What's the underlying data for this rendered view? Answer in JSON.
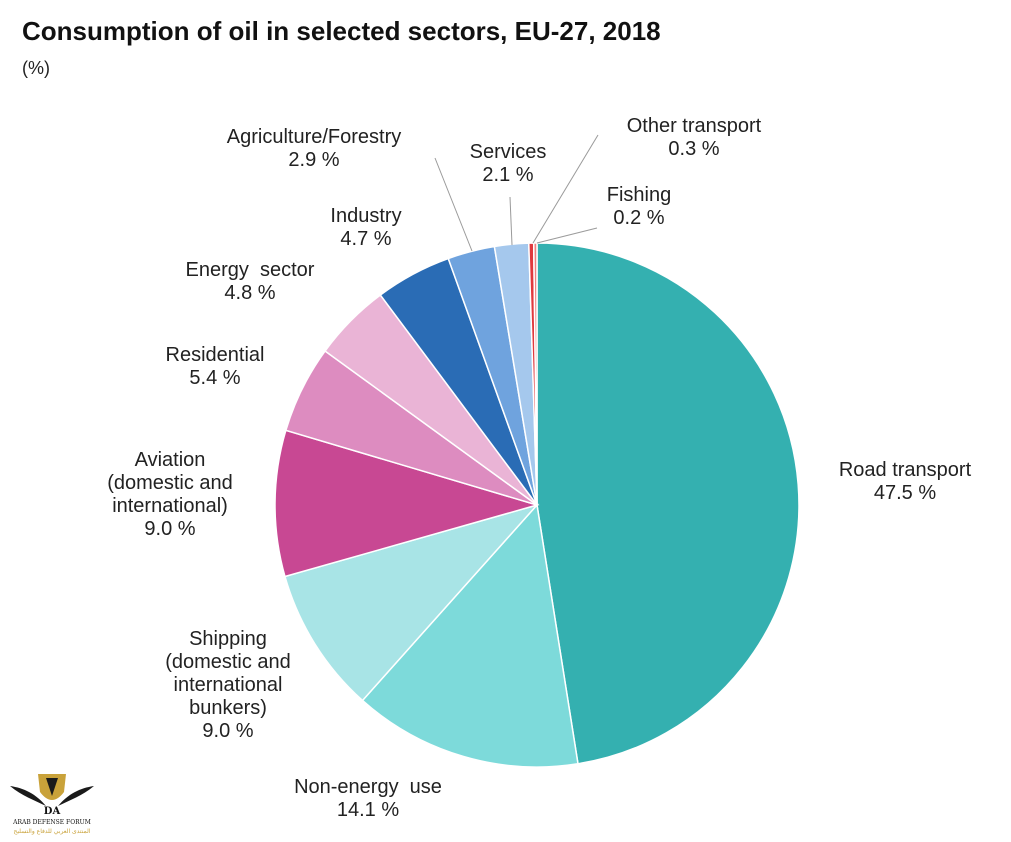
{
  "chart_data": {
    "type": "pie",
    "title": "Consumption of oil in selected sectors, EU-27, 2018",
    "subtitle": "(%)",
    "unit": "%",
    "slices": [
      {
        "key": "road-transport",
        "label": [
          "Road transport"
        ],
        "value": 47.5,
        "value_text": "47.5 %",
        "color": "#34B0B0"
      },
      {
        "key": "non-energy-use",
        "label": [
          "Non-energy  use"
        ],
        "value": 14.1,
        "value_text": "14.1 %",
        "color": "#7DDADA"
      },
      {
        "key": "shipping",
        "label": [
          "Shipping",
          "(domestic and",
          "international",
          "bunkers)"
        ],
        "value": 9.0,
        "value_text": "9.0 %",
        "color": "#A8E4E6"
      },
      {
        "key": "aviation",
        "label": [
          "Aviation",
          "(domestic and",
          "international)"
        ],
        "value": 9.0,
        "value_text": "9.0 %",
        "color": "#C84893"
      },
      {
        "key": "residential",
        "label": [
          "Residential"
        ],
        "value": 5.4,
        "value_text": "5.4 %",
        "color": "#DD8CC0"
      },
      {
        "key": "energy-sector",
        "label": [
          "Energy  sector"
        ],
        "value": 4.8,
        "value_text": "4.8 %",
        "color": "#EAB4D6"
      },
      {
        "key": "industry",
        "label": [
          "Industry"
        ],
        "value": 4.7,
        "value_text": "4.7 %",
        "color": "#2A6CB5"
      },
      {
        "key": "agriculture-forestry",
        "label": [
          "Agriculture/Forestry"
        ],
        "value": 2.9,
        "value_text": "2.9 %",
        "color": "#6FA3DE"
      },
      {
        "key": "services",
        "label": [
          "Services"
        ],
        "value": 2.1,
        "value_text": "2.1 %",
        "color": "#A5C8ED"
      },
      {
        "key": "other-transport",
        "label": [
          "Other transport"
        ],
        "value": 0.3,
        "value_text": "0.3 %",
        "color": "#E0393E"
      },
      {
        "key": "fishing",
        "label": [
          "Fishing"
        ],
        "value": 0.2,
        "value_text": "0.2 %",
        "color": "#F08080"
      }
    ]
  },
  "watermark": {
    "monogram": "DA",
    "line1": "ARAB DEFENSE FORUM",
    "line2": "المنتدى العربي للدفاع والتسليح"
  }
}
